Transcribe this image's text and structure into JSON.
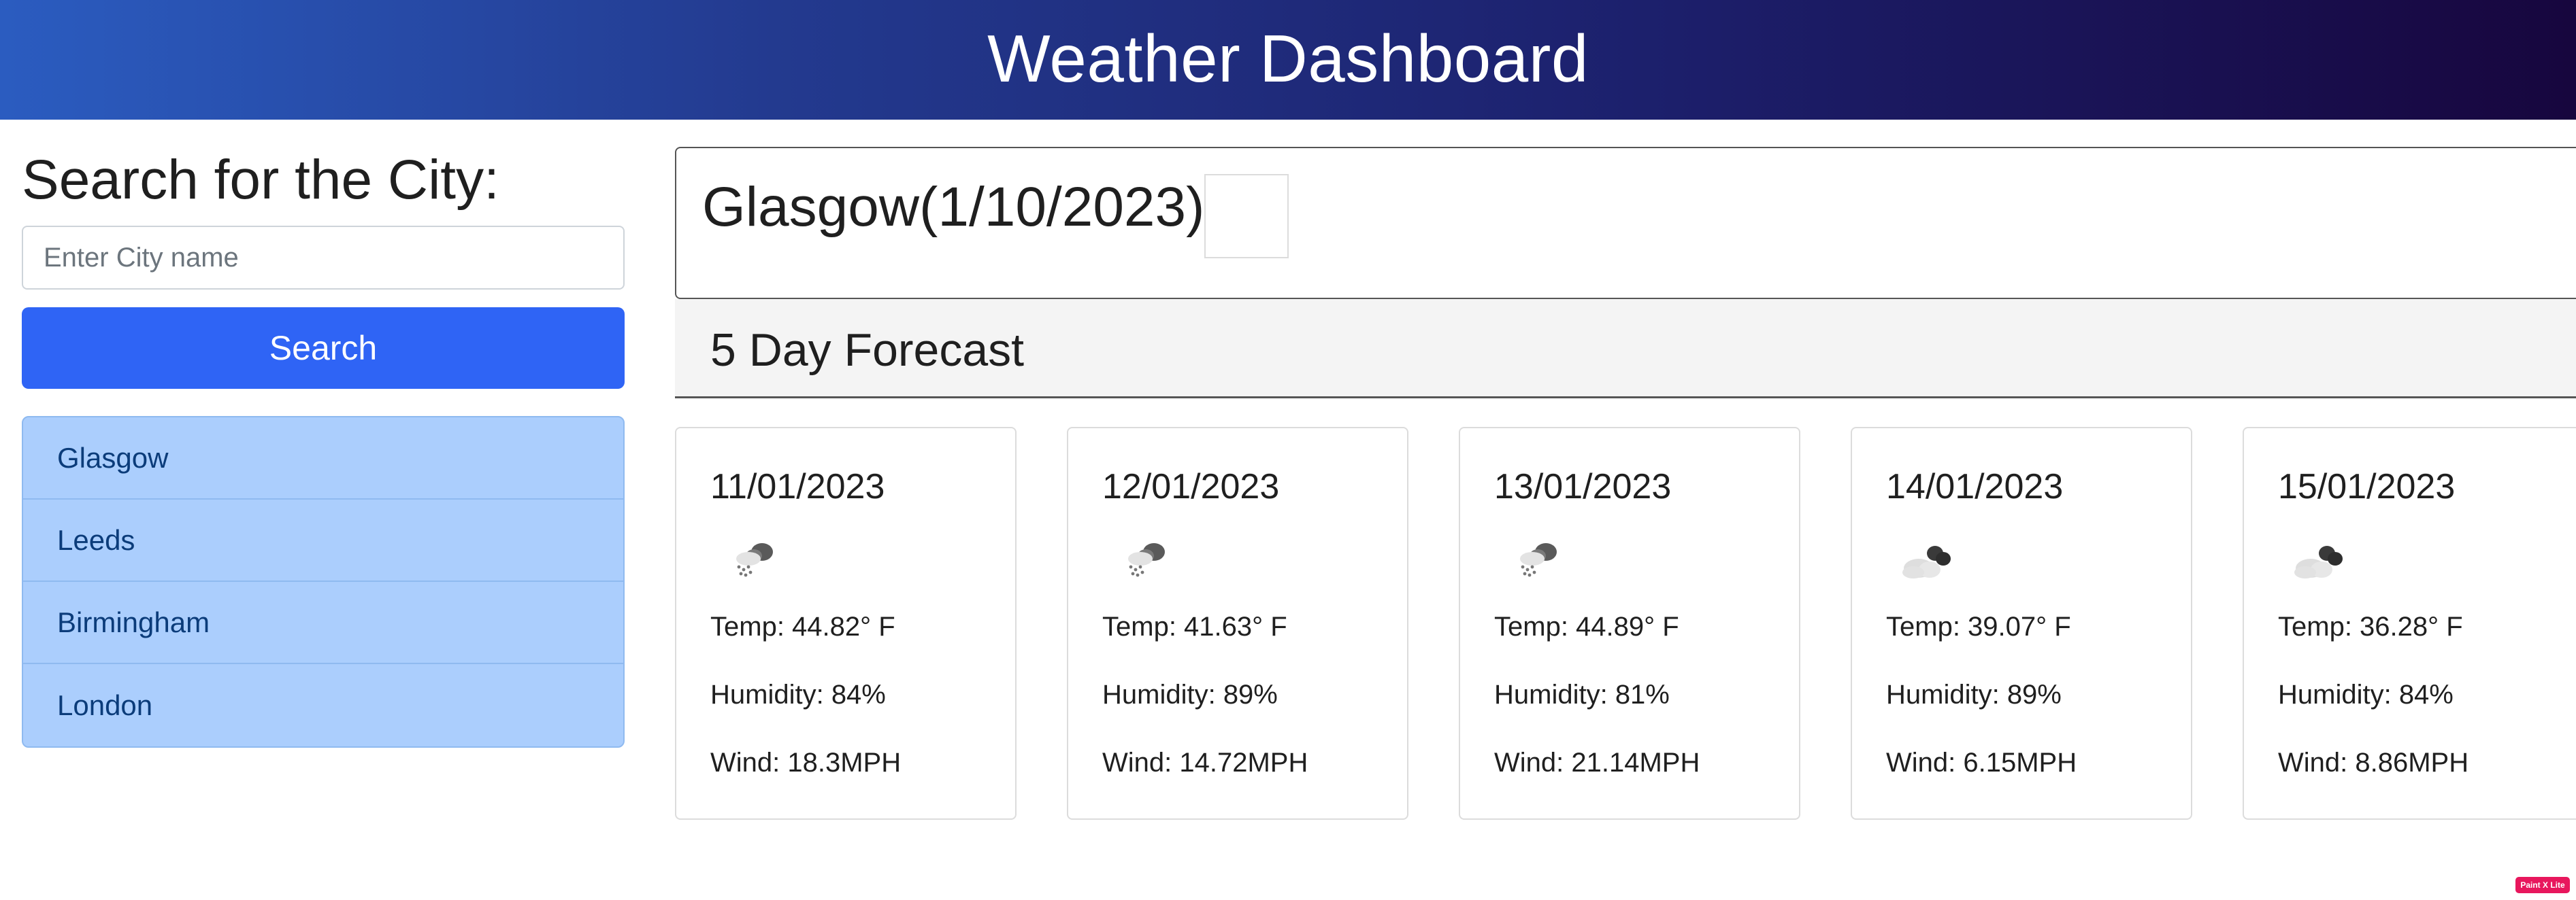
{
  "header": {
    "title": "Weather Dashboard"
  },
  "search": {
    "title": "Search for the City:",
    "placeholder": "Enter City name",
    "button_label": "Search"
  },
  "history": {
    "items": [
      {
        "label": "Glasgow"
      },
      {
        "label": "Leeds"
      },
      {
        "label": "Birmingham"
      },
      {
        "label": "London"
      }
    ]
  },
  "current": {
    "title": "Glasgow(1/10/2023)"
  },
  "forecast": {
    "title": "5 Day Forecast",
    "days": [
      {
        "date": "11/01/2023",
        "icon": "snow-cloud-icon",
        "temp": "Temp: 44.82° F",
        "humidity": "Humidity: 84%",
        "wind": "Wind: 18.3MPH"
      },
      {
        "date": "12/01/2023",
        "icon": "snow-cloud-icon",
        "temp": "Temp: 41.63° F",
        "humidity": "Humidity: 89%",
        "wind": "Wind: 14.72MPH"
      },
      {
        "date": "13/01/2023",
        "icon": "snow-cloud-icon",
        "temp": "Temp: 44.89° F",
        "humidity": "Humidity: 81%",
        "wind": "Wind: 21.14MPH"
      },
      {
        "date": "14/01/2023",
        "icon": "broken-clouds-icon",
        "temp": "Temp: 39.07° F",
        "humidity": "Humidity: 89%",
        "wind": "Wind: 6.15MPH"
      },
      {
        "date": "15/01/2023",
        "icon": "broken-clouds-icon",
        "temp": "Temp: 36.28° F",
        "humidity": "Humidity: 84%",
        "wind": "Wind: 8.86MPH"
      }
    ]
  },
  "badge": {
    "label": "Paint X Lite"
  }
}
